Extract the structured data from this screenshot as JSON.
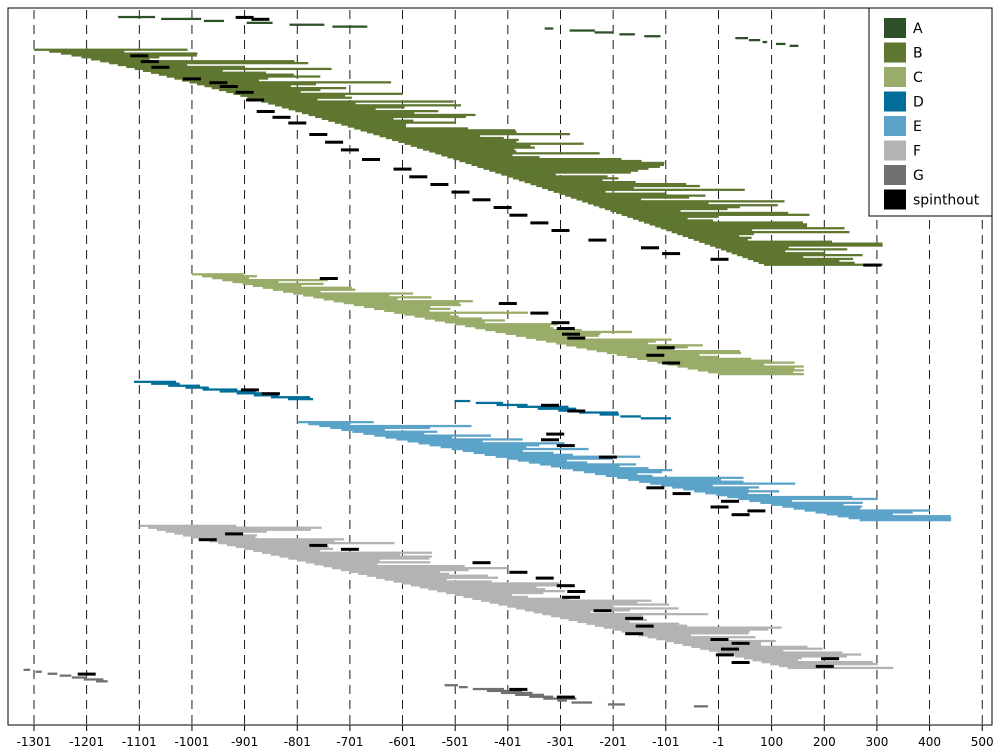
{
  "chart_data": {
    "type": "bar",
    "orientation": "horizontal-range",
    "xlim": [
      -1350,
      520
    ],
    "x_ticks": [
      -1301,
      -1201,
      -1101,
      -1001,
      -901,
      -801,
      -701,
      -601,
      -501,
      -401,
      -301,
      -201,
      -101,
      -1,
      100,
      200,
      300,
      400,
      500
    ],
    "x_tick_labels": [
      "-1301",
      "-1201",
      "-1101",
      "-1001",
      "-901",
      "-801",
      "-701",
      "-601",
      "-501",
      "-401",
      "-301",
      "-201",
      "-101",
      "-1",
      "100",
      "200",
      "300",
      "400",
      "500"
    ],
    "grid": "vertical-dashed",
    "legend_position": "top-right",
    "legend": [
      {
        "key": "A",
        "label": "A",
        "color": "#2e5029"
      },
      {
        "key": "B",
        "label": "B",
        "color": "#5f7630"
      },
      {
        "key": "C",
        "label": "C",
        "color": "#99ac6a"
      },
      {
        "key": "D",
        "label": "D",
        "color": "#006e99"
      },
      {
        "key": "E",
        "label": "E",
        "color": "#5ba3c9"
      },
      {
        "key": "F",
        "label": "F",
        "color": "#b3b3b3"
      },
      {
        "key": "G",
        "label": "G",
        "color": "#707070"
      },
      {
        "key": "spinthout",
        "label": "spinthout",
        "color": "#000000"
      }
    ],
    "series": [
      {
        "group": "A",
        "start": -1141,
        "end": -668,
        "row_from": 1,
        "row_to": 6,
        "profile": "linear"
      },
      {
        "group": "A",
        "start": -331,
        "end": -111,
        "row_from": 7,
        "row_to": 11,
        "profile": "linear"
      },
      {
        "group": "A",
        "start": 31,
        "end": 151,
        "row_from": 12,
        "row_to": 16,
        "profile": "linear"
      },
      {
        "group": "B",
        "start": -1301,
        "end": 311,
        "row_from": 18,
        "row_to": 130,
        "profile": "concave"
      },
      {
        "group": "C",
        "start": -1001,
        "end": 161,
        "row_from": 135,
        "row_to": 187,
        "profile": "linear"
      },
      {
        "group": "D",
        "start": -1111,
        "end": -771,
        "row_from": 191,
        "row_to": 200,
        "profile": "linear"
      },
      {
        "group": "D",
        "start": -501,
        "end": -91,
        "row_from": 201,
        "row_to": 210,
        "profile": "linear"
      },
      {
        "group": "E",
        "start": -801,
        "end": 441,
        "row_from": 212,
        "row_to": 263,
        "profile": "linear"
      },
      {
        "group": "F",
        "start": -1101,
        "end": 331,
        "row_from": 266,
        "row_to": 340,
        "profile": "linear"
      },
      {
        "group": "G",
        "start": -1321,
        "end": -1161,
        "row_from": 341,
        "row_to": 347,
        "profile": "linear"
      },
      {
        "group": "G",
        "start": -521,
        "end": -241,
        "row_from": 349,
        "row_to": 358,
        "profile": "linear"
      },
      {
        "group": "G",
        "start": -211,
        "end": -21,
        "row_from": 359,
        "row_to": 360,
        "profile": "linear"
      }
    ],
    "spinthout": [
      {
        "x": -901,
        "row": 1
      },
      {
        "x": -871,
        "row": 2
      },
      {
        "x": -1101,
        "row": 21
      },
      {
        "x": -1081,
        "row": 24
      },
      {
        "x": -1061,
        "row": 27
      },
      {
        "x": -1001,
        "row": 33
      },
      {
        "x": -951,
        "row": 35
      },
      {
        "x": -931,
        "row": 37
      },
      {
        "x": -901,
        "row": 40
      },
      {
        "x": -881,
        "row": 44
      },
      {
        "x": -861,
        "row": 50
      },
      {
        "x": -831,
        "row": 53
      },
      {
        "x": -801,
        "row": 56
      },
      {
        "x": -761,
        "row": 62
      },
      {
        "x": -731,
        "row": 66
      },
      {
        "x": -701,
        "row": 70
      },
      {
        "x": -661,
        "row": 75
      },
      {
        "x": -601,
        "row": 80
      },
      {
        "x": -571,
        "row": 84
      },
      {
        "x": -531,
        "row": 88
      },
      {
        "x": -491,
        "row": 92
      },
      {
        "x": -451,
        "row": 96
      },
      {
        "x": -411,
        "row": 100
      },
      {
        "x": -381,
        "row": 104
      },
      {
        "x": -341,
        "row": 108
      },
      {
        "x": -301,
        "row": 112
      },
      {
        "x": -231,
        "row": 117
      },
      {
        "x": -131,
        "row": 121
      },
      {
        "x": -91,
        "row": 124
      },
      {
        "x": 1,
        "row": 127
      },
      {
        "x": 291,
        "row": 130
      },
      {
        "x": -741,
        "row": 137
      },
      {
        "x": -401,
        "row": 150
      },
      {
        "x": -341,
        "row": 155
      },
      {
        "x": -301,
        "row": 160
      },
      {
        "x": -291,
        "row": 163
      },
      {
        "x": -281,
        "row": 166
      },
      {
        "x": -271,
        "row": 168
      },
      {
        "x": -101,
        "row": 173
      },
      {
        "x": -121,
        "row": 177
      },
      {
        "x": -91,
        "row": 181
      },
      {
        "x": -891,
        "row": 195
      },
      {
        "x": -851,
        "row": 197
      },
      {
        "x": -321,
        "row": 203
      },
      {
        "x": -271,
        "row": 206
      },
      {
        "x": -311,
        "row": 218
      },
      {
        "x": -321,
        "row": 221
      },
      {
        "x": -291,
        "row": 224
      },
      {
        "x": -211,
        "row": 230
      },
      {
        "x": -121,
        "row": 246
      },
      {
        "x": -71,
        "row": 249
      },
      {
        "x": 1,
        "row": 256
      },
      {
        "x": 21,
        "row": 253
      },
      {
        "x": 41,
        "row": 260
      },
      {
        "x": 71,
        "row": 258
      },
      {
        "x": -921,
        "row": 270
      },
      {
        "x": -971,
        "row": 273
      },
      {
        "x": -761,
        "row": 276
      },
      {
        "x": -701,
        "row": 278
      },
      {
        "x": -451,
        "row": 285
      },
      {
        "x": -381,
        "row": 290
      },
      {
        "x": -331,
        "row": 293
      },
      {
        "x": -291,
        "row": 297
      },
      {
        "x": -271,
        "row": 300
      },
      {
        "x": -281,
        "row": 303
      },
      {
        "x": -221,
        "row": 310
      },
      {
        "x": -161,
        "row": 314
      },
      {
        "x": -141,
        "row": 318
      },
      {
        "x": -161,
        "row": 322
      },
      {
        "x": 1,
        "row": 325
      },
      {
        "x": 41,
        "row": 327
      },
      {
        "x": 21,
        "row": 330
      },
      {
        "x": 11,
        "row": 333
      },
      {
        "x": 211,
        "row": 335
      },
      {
        "x": 201,
        "row": 339
      },
      {
        "x": 41,
        "row": 337
      },
      {
        "x": -1201,
        "row": 343
      },
      {
        "x": -381,
        "row": 351
      },
      {
        "x": -291,
        "row": 355
      }
    ]
  }
}
